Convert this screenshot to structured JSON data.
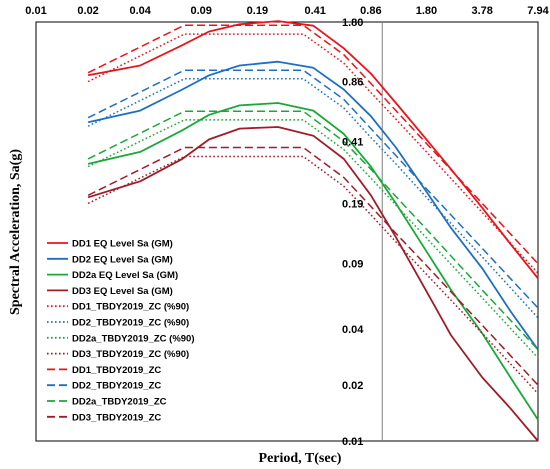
{
  "chart_data": {
    "type": "line",
    "title": "",
    "xlabel": "Period, T(sec)",
    "ylabel": "Spectral Acceleration, Sa(g)",
    "x_scale": "log",
    "y_scale": "log",
    "xlim": [
      0.01,
      7.94
    ],
    "ylim": [
      0.01,
      1.8
    ],
    "x_ticks": [
      0.01,
      0.02,
      0.04,
      0.09,
      0.19,
      0.41,
      0.86,
      1.8,
      3.78,
      7.94
    ],
    "x_tick_labels": [
      "0.01",
      "0.02",
      "0.04",
      "0.09",
      "0.19",
      "0.41",
      "0.86",
      "1.80",
      "3.78",
      "7.94"
    ],
    "y_ticks": [
      0.01,
      0.02,
      0.04,
      0.09,
      0.19,
      0.41,
      0.86,
      1.8
    ],
    "y_tick_labels": [
      "0.01",
      "0.02",
      "0.04",
      "0.09",
      "0.19",
      "0.41",
      "0.86",
      "1.80"
    ],
    "grid": "vertical line at T=1.0 only",
    "legend_position": "bottom-left",
    "series": [
      {
        "name": "DD1 EQ Level Sa (GM)",
        "color": "#e8141b",
        "style": "solid",
        "points": [
          [
            0.02,
            0.93
          ],
          [
            0.04,
            1.05
          ],
          [
            0.07,
            1.35
          ],
          [
            0.1,
            1.6
          ],
          [
            0.15,
            1.75
          ],
          [
            0.25,
            1.82
          ],
          [
            0.4,
            1.72
          ],
          [
            0.6,
            1.3
          ],
          [
            0.86,
            0.95
          ],
          [
            1.2,
            0.66
          ],
          [
            1.8,
            0.42
          ],
          [
            2.5,
            0.29
          ],
          [
            3.78,
            0.18
          ],
          [
            5.5,
            0.115
          ],
          [
            7.94,
            0.075
          ]
        ]
      },
      {
        "name": "DD2 EQ Level Sa (GM)",
        "color": "#1f6fc0",
        "style": "solid",
        "points": [
          [
            0.02,
            0.52
          ],
          [
            0.04,
            0.6
          ],
          [
            0.07,
            0.78
          ],
          [
            0.1,
            0.93
          ],
          [
            0.15,
            1.05
          ],
          [
            0.25,
            1.1
          ],
          [
            0.4,
            1.02
          ],
          [
            0.6,
            0.78
          ],
          [
            0.86,
            0.56
          ],
          [
            1.2,
            0.38
          ],
          [
            1.8,
            0.22
          ],
          [
            2.5,
            0.14
          ],
          [
            3.78,
            0.085
          ],
          [
            5.5,
            0.05
          ],
          [
            7.94,
            0.031
          ]
        ]
      },
      {
        "name": "DD2a EQ Level Sa (GM)",
        "color": "#1aa83a",
        "style": "solid",
        "points": [
          [
            0.02,
            0.31
          ],
          [
            0.04,
            0.36
          ],
          [
            0.07,
            0.47
          ],
          [
            0.1,
            0.57
          ],
          [
            0.15,
            0.64
          ],
          [
            0.25,
            0.66
          ],
          [
            0.4,
            0.6
          ],
          [
            0.6,
            0.45
          ],
          [
            0.86,
            0.3
          ],
          [
            1.2,
            0.19
          ],
          [
            1.8,
            0.105
          ],
          [
            2.5,
            0.065
          ],
          [
            3.78,
            0.038
          ],
          [
            5.5,
            0.022
          ],
          [
            7.94,
            0.013
          ]
        ]
      },
      {
        "name": "DD3 EQ Level Sa (GM)",
        "color": "#a01c28",
        "style": "solid",
        "points": [
          [
            0.02,
            0.205
          ],
          [
            0.04,
            0.25
          ],
          [
            0.07,
            0.33
          ],
          [
            0.1,
            0.42
          ],
          [
            0.15,
            0.48
          ],
          [
            0.25,
            0.49
          ],
          [
            0.4,
            0.44
          ],
          [
            0.6,
            0.33
          ],
          [
            0.86,
            0.21
          ],
          [
            1.2,
            0.125
          ],
          [
            1.8,
            0.064
          ],
          [
            2.5,
            0.037
          ],
          [
            3.78,
            0.022
          ],
          [
            5.5,
            0.015
          ],
          [
            7.94,
            0.01
          ]
        ]
      },
      {
        "name": "DD1_TBDY2019_ZC (%90)",
        "color": "#e8141b",
        "style": "dotted",
        "points": [
          [
            0.02,
            0.86
          ],
          [
            0.072,
            1.55
          ],
          [
            0.35,
            1.55
          ],
          [
            0.6,
            1.08
          ],
          [
            0.86,
            0.75
          ],
          [
            1.2,
            0.54
          ],
          [
            1.8,
            0.36
          ],
          [
            3.78,
            0.17
          ],
          [
            7.94,
            0.08
          ]
        ]
      },
      {
        "name": "DD2_TBDY2019_ZC (%90)",
        "color": "#1f6fc0",
        "style": "dotted",
        "points": [
          [
            0.02,
            0.495
          ],
          [
            0.072,
            0.89
          ],
          [
            0.35,
            0.89
          ],
          [
            0.6,
            0.62
          ],
          [
            0.86,
            0.43
          ],
          [
            1.2,
            0.31
          ],
          [
            1.8,
            0.205
          ],
          [
            3.78,
            0.098
          ],
          [
            7.94,
            0.046
          ]
        ]
      },
      {
        "name": "DD2a_TBDY2019_ZC (%90)",
        "color": "#1aa83a",
        "style": "dotted",
        "points": [
          [
            0.02,
            0.3
          ],
          [
            0.072,
            0.535
          ],
          [
            0.35,
            0.535
          ],
          [
            0.6,
            0.37
          ],
          [
            0.86,
            0.26
          ],
          [
            1.2,
            0.186
          ],
          [
            1.8,
            0.124
          ],
          [
            3.78,
            0.059
          ],
          [
            7.94,
            0.028
          ]
        ]
      },
      {
        "name": "DD3_TBDY2019_ZC (%90)",
        "color": "#a01c28",
        "style": "dotted",
        "points": [
          [
            0.02,
            0.19
          ],
          [
            0.072,
            0.34
          ],
          [
            0.35,
            0.34
          ],
          [
            0.6,
            0.235
          ],
          [
            0.86,
            0.165
          ],
          [
            1.2,
            0.118
          ],
          [
            1.8,
            0.079
          ],
          [
            3.78,
            0.038
          ],
          [
            7.94,
            0.018
          ]
        ]
      },
      {
        "name": "DD1_TBDY2019_ZC",
        "color": "#e8141b",
        "style": "dashed",
        "points": [
          [
            0.02,
            0.96
          ],
          [
            0.072,
            1.73
          ],
          [
            0.35,
            1.73
          ],
          [
            0.6,
            1.2
          ],
          [
            0.86,
            0.84
          ],
          [
            1.2,
            0.6
          ],
          [
            1.8,
            0.4
          ],
          [
            3.78,
            0.19
          ],
          [
            7.94,
            0.09
          ]
        ]
      },
      {
        "name": "DD2_TBDY2019_ZC",
        "color": "#1f6fc0",
        "style": "dashed",
        "points": [
          [
            0.02,
            0.55
          ],
          [
            0.072,
            0.99
          ],
          [
            0.35,
            0.99
          ],
          [
            0.6,
            0.69
          ],
          [
            0.86,
            0.48
          ],
          [
            1.2,
            0.344
          ],
          [
            1.8,
            0.228
          ],
          [
            3.78,
            0.109
          ],
          [
            7.94,
            0.052
          ]
        ]
      },
      {
        "name": "DD2a_TBDY2019_ZC",
        "color": "#1aa83a",
        "style": "dashed",
        "points": [
          [
            0.02,
            0.33
          ],
          [
            0.072,
            0.595
          ],
          [
            0.35,
            0.595
          ],
          [
            0.6,
            0.41
          ],
          [
            0.86,
            0.29
          ],
          [
            1.2,
            0.207
          ],
          [
            1.8,
            0.138
          ],
          [
            3.78,
            0.065
          ],
          [
            7.94,
            0.031
          ]
        ]
      },
      {
        "name": "DD3_TBDY2019_ZC",
        "color": "#a01c28",
        "style": "dashed",
        "points": [
          [
            0.02,
            0.21
          ],
          [
            0.072,
            0.38
          ],
          [
            0.35,
            0.38
          ],
          [
            0.6,
            0.262
          ],
          [
            0.86,
            0.183
          ],
          [
            1.2,
            0.131
          ],
          [
            1.8,
            0.088
          ],
          [
            3.78,
            0.042
          ],
          [
            7.94,
            0.02
          ]
        ]
      }
    ]
  }
}
